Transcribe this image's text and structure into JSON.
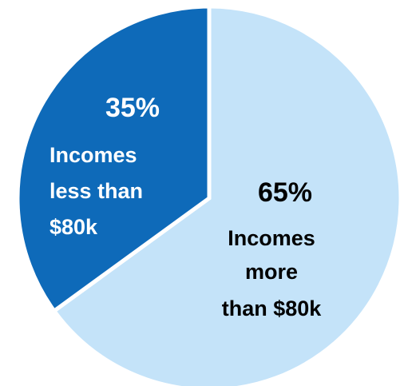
{
  "chart_data": {
    "type": "pie",
    "title": "",
    "start_angle_deg": 0,
    "direction": "clockwise",
    "slices": [
      {
        "value": 65,
        "percent_label": "65%",
        "label_lines": [
          "Incomes",
          "more",
          "than $80k"
        ],
        "color": "#c4e3f9",
        "text_color": "#000000"
      },
      {
        "value": 35,
        "percent_label": "35%",
        "label_lines": [
          "Incomes",
          "less than",
          "$80k"
        ],
        "color": "#0e6ab9",
        "text_color": "#ffffff"
      }
    ]
  }
}
